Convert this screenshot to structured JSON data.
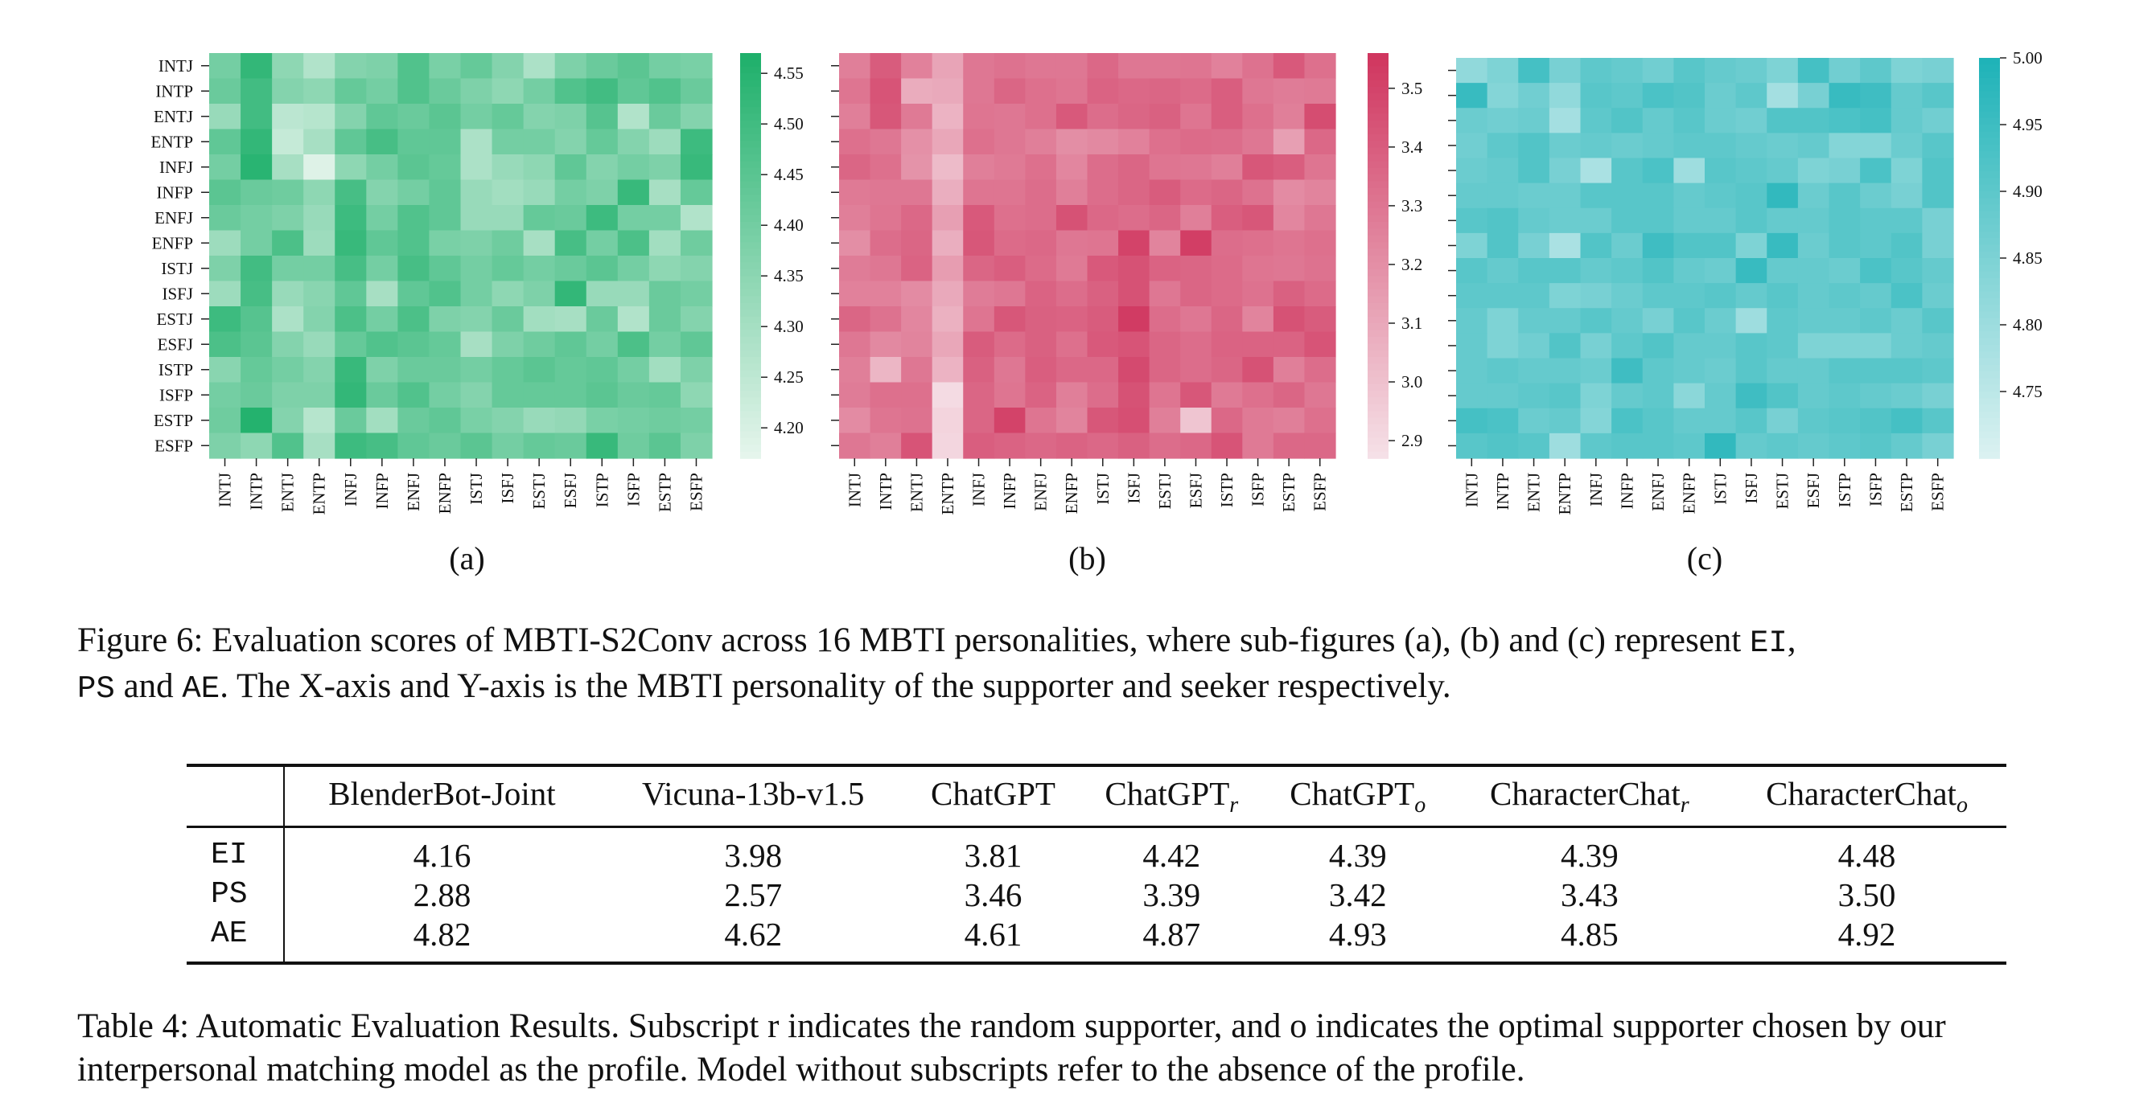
{
  "figure": {
    "mbti": [
      "INTJ",
      "INTP",
      "ENTJ",
      "ENTP",
      "INFJ",
      "INFP",
      "ENFJ",
      "ENFP",
      "ISTJ",
      "ISFJ",
      "ESTJ",
      "ESFJ",
      "ISTP",
      "ISFP",
      "ESTP",
      "ESFP"
    ],
    "panels": [
      {
        "id": "a",
        "label": "(a)",
        "palette": {
          "low": "#e8f6ee",
          "high": "#1fb06b"
        },
        "color_range": [
          4.17,
          4.57
        ],
        "colorbar_ticks": [
          "4.20",
          "4.25",
          "4.30",
          "4.35",
          "4.40",
          "4.45",
          "4.50",
          "4.55"
        ],
        "colorbar_tick_values": [
          4.2,
          4.25,
          4.3,
          4.35,
          4.4,
          4.45,
          4.5,
          4.55
        ]
      },
      {
        "id": "b",
        "label": "(b)",
        "palette": {
          "low": "#f6e3e9",
          "high": "#d0365f"
        },
        "color_range": [
          2.87,
          3.56
        ],
        "colorbar_ticks": [
          "2.9",
          "3.0",
          "3.1",
          "3.2",
          "3.3",
          "3.4",
          "3.5"
        ],
        "colorbar_tick_values": [
          2.9,
          3.0,
          3.1,
          3.2,
          3.3,
          3.4,
          3.5
        ]
      },
      {
        "id": "c",
        "label": "(c)",
        "palette": {
          "low": "#ddf2f2",
          "high": "#1fb3b8"
        },
        "color_range": [
          4.7,
          5.0
        ],
        "colorbar_ticks": [
          "4.75",
          "4.80",
          "4.85",
          "4.90",
          "4.95",
          "5.00"
        ],
        "colorbar_tick_values": [
          4.75,
          4.8,
          4.85,
          4.9,
          4.95,
          5.0
        ]
      }
    ]
  },
  "chart_data": [
    {
      "type": "heatmap",
      "panel": "(a)",
      "x": [
        "INTJ",
        "INTP",
        "ENTJ",
        "ENTP",
        "INFJ",
        "INFP",
        "ENFJ",
        "ENFP",
        "ISTJ",
        "ISFJ",
        "ESTJ",
        "ESFJ",
        "ISTP",
        "ISFP",
        "ESTP",
        "ESFP"
      ],
      "y": [
        "INTJ",
        "INTP",
        "ENTJ",
        "ENTP",
        "INFJ",
        "INFP",
        "ENFJ",
        "ENFP",
        "ISTJ",
        "ISFJ",
        "ESTJ",
        "ESFJ",
        "ISTP",
        "ISFP",
        "ESTP",
        "ESFP"
      ],
      "values": [
        [
          4.4,
          4.53,
          4.35,
          4.28,
          4.37,
          4.38,
          4.47,
          4.39,
          4.43,
          4.37,
          4.29,
          4.38,
          4.42,
          4.45,
          4.4,
          4.39
        ],
        [
          4.42,
          4.5,
          4.37,
          4.35,
          4.43,
          4.4,
          4.47,
          4.42,
          4.38,
          4.35,
          4.4,
          4.47,
          4.5,
          4.44,
          4.47,
          4.42
        ],
        [
          4.33,
          4.5,
          4.26,
          4.27,
          4.37,
          4.44,
          4.42,
          4.45,
          4.4,
          4.43,
          4.37,
          4.38,
          4.46,
          4.28,
          4.42,
          4.37
        ],
        [
          4.44,
          4.53,
          4.24,
          4.3,
          4.44,
          4.49,
          4.44,
          4.44,
          4.29,
          4.4,
          4.4,
          4.37,
          4.43,
          4.37,
          4.32,
          4.51
        ],
        [
          4.4,
          4.55,
          4.3,
          4.19,
          4.35,
          4.4,
          4.45,
          4.43,
          4.29,
          4.33,
          4.35,
          4.44,
          4.37,
          4.4,
          4.38,
          4.52
        ],
        [
          4.45,
          4.42,
          4.41,
          4.35,
          4.49,
          4.37,
          4.4,
          4.44,
          4.33,
          4.31,
          4.33,
          4.4,
          4.38,
          4.52,
          4.3,
          4.43
        ],
        [
          4.42,
          4.4,
          4.38,
          4.33,
          4.51,
          4.4,
          4.47,
          4.44,
          4.33,
          4.33,
          4.43,
          4.42,
          4.51,
          4.4,
          4.4,
          4.28
        ],
        [
          4.32,
          4.4,
          4.48,
          4.32,
          4.52,
          4.44,
          4.47,
          4.39,
          4.38,
          4.41,
          4.3,
          4.49,
          4.4,
          4.48,
          4.31,
          4.41
        ],
        [
          4.38,
          4.5,
          4.4,
          4.4,
          4.49,
          4.4,
          4.49,
          4.44,
          4.4,
          4.43,
          4.4,
          4.42,
          4.45,
          4.4,
          4.35,
          4.37
        ],
        [
          4.32,
          4.49,
          4.33,
          4.36,
          4.44,
          4.3,
          4.44,
          4.47,
          4.4,
          4.35,
          4.38,
          4.53,
          4.33,
          4.33,
          4.42,
          4.4
        ],
        [
          4.51,
          4.46,
          4.29,
          4.37,
          4.48,
          4.4,
          4.48,
          4.38,
          4.37,
          4.42,
          4.31,
          4.3,
          4.42,
          4.28,
          4.42,
          4.37
        ],
        [
          4.48,
          4.45,
          4.37,
          4.33,
          4.43,
          4.47,
          4.45,
          4.43,
          4.3,
          4.38,
          4.41,
          4.44,
          4.4,
          4.48,
          4.4,
          4.44
        ],
        [
          4.36,
          4.43,
          4.4,
          4.37,
          4.52,
          4.38,
          4.42,
          4.42,
          4.4,
          4.43,
          4.45,
          4.43,
          4.44,
          4.4,
          4.31,
          4.38
        ],
        [
          4.4,
          4.42,
          4.38,
          4.38,
          4.53,
          4.42,
          4.47,
          4.4,
          4.37,
          4.43,
          4.43,
          4.43,
          4.45,
          4.42,
          4.43,
          4.35
        ],
        [
          4.41,
          4.56,
          4.37,
          4.27,
          4.42,
          4.31,
          4.42,
          4.44,
          4.39,
          4.37,
          4.33,
          4.34,
          4.39,
          4.4,
          4.41,
          4.4
        ],
        [
          4.38,
          4.35,
          4.47,
          4.3,
          4.51,
          4.49,
          4.44,
          4.42,
          4.45,
          4.4,
          4.43,
          4.42,
          4.52,
          4.41,
          4.45,
          4.38
        ]
      ],
      "colorbar_range": [
        4.17,
        4.57
      ]
    },
    {
      "type": "heatmap",
      "panel": "(b)",
      "x": [
        "INTJ",
        "INTP",
        "ENTJ",
        "ENTP",
        "INFJ",
        "INFP",
        "ENFJ",
        "ENFP",
        "ISTJ",
        "ISFJ",
        "ESTJ",
        "ESFJ",
        "ISTP",
        "ISFP",
        "ESTP",
        "ESFP"
      ],
      "y": [
        "INTJ",
        "INTP",
        "ENTJ",
        "ENTP",
        "INFJ",
        "INFP",
        "ENFJ",
        "ENFP",
        "ISTJ",
        "ISFJ",
        "ESTJ",
        "ESFJ",
        "ISTP",
        "ISFP",
        "ESTP",
        "ESFP"
      ],
      "values": [
        [
          3.27,
          3.41,
          3.26,
          3.12,
          3.3,
          3.32,
          3.3,
          3.3,
          3.36,
          3.3,
          3.3,
          3.31,
          3.26,
          3.32,
          3.42,
          3.33
        ],
        [
          3.31,
          3.44,
          3.09,
          3.1,
          3.3,
          3.37,
          3.33,
          3.31,
          3.38,
          3.36,
          3.37,
          3.35,
          3.4,
          3.3,
          3.28,
          3.29
        ],
        [
          3.27,
          3.43,
          3.29,
          3.06,
          3.31,
          3.3,
          3.33,
          3.42,
          3.34,
          3.37,
          3.39,
          3.31,
          3.4,
          3.33,
          3.27,
          3.47
        ],
        [
          3.33,
          3.3,
          3.2,
          3.11,
          3.33,
          3.3,
          3.27,
          3.21,
          3.23,
          3.26,
          3.33,
          3.35,
          3.34,
          3.3,
          3.14,
          3.36
        ],
        [
          3.37,
          3.33,
          3.19,
          3.03,
          3.27,
          3.29,
          3.33,
          3.24,
          3.34,
          3.37,
          3.31,
          3.3,
          3.27,
          3.43,
          3.4,
          3.31
        ],
        [
          3.29,
          3.3,
          3.3,
          3.08,
          3.31,
          3.31,
          3.34,
          3.27,
          3.34,
          3.37,
          3.41,
          3.35,
          3.37,
          3.32,
          3.22,
          3.25
        ],
        [
          3.27,
          3.31,
          3.36,
          3.14,
          3.42,
          3.33,
          3.34,
          3.45,
          3.36,
          3.34,
          3.37,
          3.27,
          3.4,
          3.43,
          3.24,
          3.3
        ],
        [
          3.21,
          3.34,
          3.37,
          3.08,
          3.43,
          3.35,
          3.36,
          3.3,
          3.31,
          3.51,
          3.25,
          3.53,
          3.34,
          3.33,
          3.31,
          3.33
        ],
        [
          3.28,
          3.3,
          3.38,
          3.15,
          3.37,
          3.4,
          3.35,
          3.29,
          3.42,
          3.45,
          3.38,
          3.37,
          3.35,
          3.31,
          3.3,
          3.32
        ],
        [
          3.26,
          3.26,
          3.22,
          3.1,
          3.28,
          3.3,
          3.38,
          3.34,
          3.39,
          3.45,
          3.3,
          3.37,
          3.35,
          3.32,
          3.39,
          3.35
        ],
        [
          3.37,
          3.32,
          3.24,
          3.07,
          3.31,
          3.43,
          3.39,
          3.38,
          3.41,
          3.54,
          3.34,
          3.3,
          3.37,
          3.25,
          3.45,
          3.41
        ],
        [
          3.3,
          3.23,
          3.25,
          3.11,
          3.41,
          3.35,
          3.39,
          3.33,
          3.42,
          3.44,
          3.37,
          3.34,
          3.38,
          3.38,
          3.38,
          3.44
        ],
        [
          3.27,
          3.05,
          3.3,
          3.06,
          3.39,
          3.3,
          3.4,
          3.36,
          3.36,
          3.48,
          3.37,
          3.34,
          3.37,
          3.45,
          3.27,
          3.34
        ],
        [
          3.28,
          3.33,
          3.33,
          2.9,
          3.37,
          3.31,
          3.38,
          3.27,
          3.34,
          3.45,
          3.31,
          3.43,
          3.29,
          3.33,
          3.37,
          3.3
        ],
        [
          3.22,
          3.31,
          3.32,
          2.93,
          3.37,
          3.51,
          3.31,
          3.25,
          3.43,
          3.46,
          3.27,
          2.99,
          3.36,
          3.29,
          3.27,
          3.33
        ],
        [
          3.3,
          3.27,
          3.44,
          2.92,
          3.4,
          3.38,
          3.36,
          3.38,
          3.36,
          3.39,
          3.34,
          3.36,
          3.44,
          3.29,
          3.36,
          3.36
        ]
      ],
      "colorbar_range": [
        2.87,
        3.56
      ]
    },
    {
      "type": "heatmap",
      "panel": "(c)",
      "x": [
        "INTJ",
        "INTP",
        "ENTJ",
        "ENTP",
        "INFJ",
        "INFP",
        "ENFJ",
        "ENFP",
        "ISTJ",
        "ISFJ",
        "ESTJ",
        "ESFJ",
        "ISTP",
        "ISFP",
        "ESTP",
        "ESFP"
      ],
      "y": [
        "INTJ",
        "INTP",
        "ENTJ",
        "ENTP",
        "INFJ",
        "INFP",
        "ENFJ",
        "ENFP",
        "ISTJ",
        "ISFJ",
        "ESTJ",
        "ESFJ",
        "ISTP",
        "ISFP",
        "ESTP",
        "ESFP"
      ],
      "values": [
        [
          4.82,
          4.85,
          4.94,
          4.86,
          4.9,
          4.89,
          4.87,
          4.91,
          4.89,
          4.88,
          4.85,
          4.94,
          4.87,
          4.9,
          4.85,
          4.86
        ],
        [
          4.96,
          4.84,
          4.87,
          4.82,
          4.91,
          4.9,
          4.93,
          4.92,
          4.88,
          4.9,
          4.79,
          4.86,
          4.96,
          4.95,
          4.89,
          4.91
        ],
        [
          4.88,
          4.87,
          4.88,
          4.79,
          4.9,
          4.92,
          4.89,
          4.91,
          4.88,
          4.87,
          4.92,
          4.92,
          4.93,
          4.94,
          4.89,
          4.87
        ],
        [
          4.87,
          4.9,
          4.92,
          4.88,
          4.89,
          4.88,
          4.89,
          4.9,
          4.9,
          4.89,
          4.88,
          4.89,
          4.84,
          4.84,
          4.88,
          4.91
        ],
        [
          4.88,
          4.89,
          4.92,
          4.86,
          4.78,
          4.91,
          4.93,
          4.8,
          4.91,
          4.9,
          4.89,
          4.85,
          4.86,
          4.93,
          4.85,
          4.92
        ],
        [
          4.89,
          4.89,
          4.88,
          4.88,
          4.91,
          4.91,
          4.91,
          4.89,
          4.9,
          4.91,
          4.97,
          4.88,
          4.91,
          4.88,
          4.86,
          4.92
        ],
        [
          4.91,
          4.92,
          4.89,
          4.88,
          4.88,
          4.91,
          4.91,
          4.89,
          4.89,
          4.91,
          4.89,
          4.89,
          4.91,
          4.9,
          4.9,
          4.86
        ],
        [
          4.85,
          4.92,
          4.86,
          4.78,
          4.92,
          4.88,
          4.95,
          4.92,
          4.92,
          4.85,
          4.96,
          4.88,
          4.91,
          4.9,
          4.92,
          4.86
        ],
        [
          4.91,
          4.89,
          4.91,
          4.91,
          4.89,
          4.9,
          4.92,
          4.89,
          4.88,
          4.96,
          4.89,
          4.89,
          4.88,
          4.93,
          4.91,
          4.89
        ],
        [
          4.9,
          4.9,
          4.9,
          4.85,
          4.86,
          4.88,
          4.9,
          4.9,
          4.91,
          4.89,
          4.91,
          4.89,
          4.9,
          4.89,
          4.93,
          4.88
        ],
        [
          4.89,
          4.85,
          4.89,
          4.89,
          4.91,
          4.89,
          4.86,
          4.91,
          4.88,
          4.8,
          4.9,
          4.89,
          4.89,
          4.9,
          4.88,
          4.91
        ],
        [
          4.89,
          4.85,
          4.87,
          4.92,
          4.86,
          4.9,
          4.92,
          4.89,
          4.89,
          4.91,
          4.9,
          4.85,
          4.85,
          4.85,
          4.88,
          4.89
        ],
        [
          4.89,
          4.9,
          4.89,
          4.89,
          4.88,
          4.95,
          4.9,
          4.89,
          4.88,
          4.91,
          4.89,
          4.89,
          4.91,
          4.91,
          4.91,
          4.9
        ],
        [
          4.89,
          4.89,
          4.9,
          4.91,
          4.85,
          4.89,
          4.9,
          4.83,
          4.89,
          4.95,
          4.92,
          4.89,
          4.9,
          4.89,
          4.88,
          4.86
        ],
        [
          4.94,
          4.93,
          4.88,
          4.89,
          4.84,
          4.93,
          4.91,
          4.89,
          4.89,
          4.91,
          4.86,
          4.9,
          4.91,
          4.92,
          4.94,
          4.91
        ],
        [
          4.91,
          4.92,
          4.91,
          4.8,
          4.9,
          4.91,
          4.91,
          4.9,
          4.97,
          4.89,
          4.9,
          4.89,
          4.9,
          4.91,
          4.89,
          4.86
        ]
      ],
      "colorbar_range": [
        4.7,
        5.0
      ]
    },
    {
      "type": "table",
      "columns": [
        "BlenderBot-Joint",
        "Vicuna-13b-v1.5",
        "ChatGPT",
        "ChatGPT_r",
        "ChatGPT_o",
        "CharacterChat_r",
        "CharacterChat_o"
      ],
      "rows": [
        "EI",
        "PS",
        "AE"
      ],
      "values": [
        [
          4.16,
          3.98,
          3.81,
          4.42,
          4.39,
          4.39,
          4.48
        ],
        [
          2.88,
          2.57,
          3.46,
          3.39,
          3.42,
          3.43,
          3.5
        ],
        [
          4.82,
          4.62,
          4.61,
          4.87,
          4.93,
          4.85,
          4.92
        ]
      ]
    }
  ],
  "figure_caption": {
    "part1": "Figure 6: Evaluation scores of MBTI-S2Conv across 16 MBTI personalities, where sub-figures (a), (b) and (c) represent ",
    "ei": "EI",
    "comma": ",",
    "ps": "PS",
    "and": " and ",
    "ae": "AE",
    "part2": ". The X-axis and Y-axis is the MBTI personality of the supporter and seeker respectively."
  },
  "table": {
    "headers": [
      {
        "base": "BlenderBot-Joint",
        "sub": ""
      },
      {
        "base": "Vicuna-13b-v1.5",
        "sub": ""
      },
      {
        "base": "ChatGPT",
        "sub": ""
      },
      {
        "base": "ChatGPT",
        "sub": "r"
      },
      {
        "base": "ChatGPT",
        "sub": "o"
      },
      {
        "base": "CharacterChat",
        "sub": "r"
      },
      {
        "base": "CharacterChat",
        "sub": "o"
      }
    ],
    "rows": [
      {
        "label": "EI",
        "cells": [
          "4.16",
          "3.98",
          "3.81",
          "4.42",
          "4.39",
          "4.39",
          "4.48"
        ],
        "bold_index": 6
      },
      {
        "label": "PS",
        "cells": [
          "2.88",
          "2.57",
          "3.46",
          "3.39",
          "3.42",
          "3.43",
          "3.50"
        ],
        "bold_index": 6
      },
      {
        "label": "AE",
        "cells": [
          "4.82",
          "4.62",
          "4.61",
          "4.87",
          "4.93",
          "4.85",
          "4.92"
        ],
        "bold_index": 4
      }
    ]
  },
  "table_caption": {
    "text": "Table 4: Automatic Evaluation Results. Subscript r indicates the random supporter, and o indicates the optimal supporter chosen by our interpersonal matching model as the profile. Model without subscripts refer to the absence of the profile."
  }
}
